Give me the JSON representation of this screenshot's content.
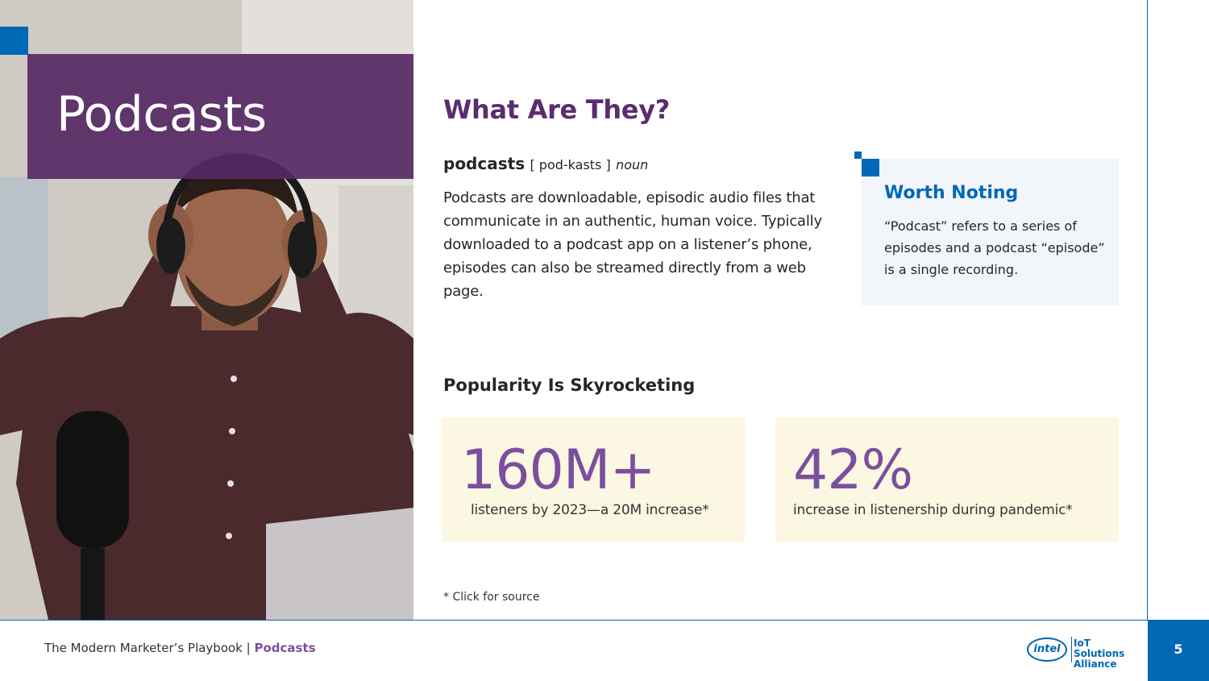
{
  "hero": {
    "title": "Podcasts"
  },
  "main": {
    "heading": "What Are They?",
    "term": "podcasts",
    "pronunciation": "[ pod-kasts ]",
    "part_of_speech": "noun",
    "definition": "Podcasts are downloadable, episodic audio files that communicate in an authentic, human voice. Typically downloaded to a podcast app on a listener’s phone, episodes can also be streamed directly from a web page."
  },
  "note": {
    "title": "Worth Noting",
    "text": "“Podcast” refers to a series of episodes and a podcast “episode” is a single recording."
  },
  "popularity": {
    "heading": "Popularity Is Skyrocketing",
    "stats": [
      {
        "value": "160M+",
        "label": "listeners by 2023—a 20M increase*"
      },
      {
        "value": "42%",
        "label": "increase in listenership during pandemic*"
      }
    ],
    "source_link": "* Click for source"
  },
  "footer": {
    "publication": "The Modern Marketer’s Playbook",
    "separator": "|",
    "section": "Podcasts",
    "logo_brand": "intel",
    "logo_line1": "IoT Solutions",
    "logo_line2": "Alliance",
    "page_number": "5"
  },
  "colors": {
    "purple": "#5b2c6f",
    "stat_purple": "#7b4f9e",
    "intel_blue": "#0068b5",
    "note_bg": "#f2f5fa",
    "stat_bg": "#fbf7e2"
  },
  "icons": [
    "intel-logo-icon"
  ]
}
